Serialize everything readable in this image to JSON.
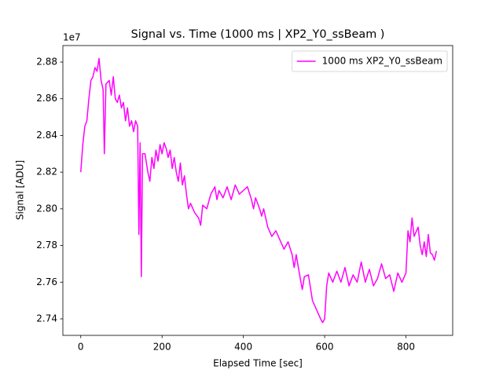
{
  "chart_data": {
    "type": "line",
    "title": "Signal vs. Time (1000 ms | XP2_Y0_ssBeam )",
    "x_label": "Elapsed Time [sec]",
    "y_label": "Signal [ADU]",
    "y_offset_label": "1e7",
    "legend_position": "upper right",
    "xlim": [
      -44,
      915
    ],
    "ylim": [
      27310000,
      28890000
    ],
    "xticks": [
      0,
      200,
      400,
      600,
      800
    ],
    "yticks": [
      {
        "value": 27400000,
        "label": "2.74"
      },
      {
        "value": 27600000,
        "label": "2.76"
      },
      {
        "value": 27800000,
        "label": "2.78"
      },
      {
        "value": 28000000,
        "label": "2.80"
      },
      {
        "value": 28200000,
        "label": "2.82"
      },
      {
        "value": 28400000,
        "label": "2.84"
      },
      {
        "value": 28600000,
        "label": "2.86"
      },
      {
        "value": 28800000,
        "label": "2.88"
      }
    ],
    "series": [
      {
        "name": "1000 ms XP2_Y0_ssBeam",
        "color": "#ff00ff",
        "x": [
          0,
          5,
          10,
          15,
          20,
          25,
          30,
          35,
          40,
          45,
          50,
          55,
          58,
          62,
          70,
          75,
          80,
          85,
          90,
          95,
          100,
          105,
          110,
          115,
          120,
          125,
          130,
          135,
          140,
          143,
          146,
          149,
          152,
          158,
          165,
          170,
          175,
          180,
          185,
          190,
          195,
          200,
          205,
          210,
          215,
          220,
          225,
          230,
          235,
          240,
          245,
          250,
          255,
          260,
          265,
          270,
          280,
          290,
          295,
          300,
          310,
          320,
          330,
          335,
          340,
          350,
          360,
          370,
          380,
          390,
          400,
          410,
          420,
          425,
          430,
          440,
          445,
          450,
          460,
          470,
          480,
          490,
          500,
          510,
          520,
          525,
          530,
          540,
          545,
          550,
          560,
          570,
          580,
          590,
          595,
          600,
          605,
          610,
          620,
          630,
          640,
          650,
          660,
          670,
          680,
          690,
          700,
          710,
          720,
          730,
          740,
          750,
          760,
          770,
          780,
          790,
          800,
          805,
          810,
          815,
          820,
          830,
          835,
          840,
          845,
          850,
          855,
          860,
          865,
          870,
          875
        ],
        "values": [
          28200000,
          28350000,
          28450000,
          28480000,
          28600000,
          28700000,
          28720000,
          28770000,
          28750000,
          28820000,
          28700000,
          28650000,
          28300000,
          28680000,
          28700000,
          28620000,
          28720000,
          28600000,
          28580000,
          28620000,
          28550000,
          28580000,
          28480000,
          28550000,
          28450000,
          28480000,
          28420000,
          28480000,
          28450000,
          27860000,
          28360000,
          27630000,
          28300000,
          28300000,
          28200000,
          28150000,
          28280000,
          28220000,
          28320000,
          28260000,
          28350000,
          28300000,
          28360000,
          28330000,
          28280000,
          28320000,
          28220000,
          28280000,
          28200000,
          28150000,
          28250000,
          28130000,
          28180000,
          28080000,
          28000000,
          28030000,
          27980000,
          27950000,
          27910000,
          28020000,
          28000000,
          28080000,
          28120000,
          28050000,
          28100000,
          28060000,
          28120000,
          28050000,
          28130000,
          28080000,
          28100000,
          28120000,
          28050000,
          28000000,
          28060000,
          28000000,
          27960000,
          28000000,
          27900000,
          27850000,
          27880000,
          27830000,
          27780000,
          27820000,
          27750000,
          27680000,
          27750000,
          27620000,
          27560000,
          27630000,
          27640000,
          27500000,
          27450000,
          27400000,
          27380000,
          27400000,
          27580000,
          27650000,
          27600000,
          27660000,
          27600000,
          27680000,
          27580000,
          27640000,
          27600000,
          27710000,
          27600000,
          27670000,
          27580000,
          27620000,
          27700000,
          27620000,
          27640000,
          27550000,
          27650000,
          27600000,
          27650000,
          27880000,
          27820000,
          27950000,
          27850000,
          27900000,
          27800000,
          27750000,
          27820000,
          27740000,
          27860000,
          27760000,
          27750000,
          27720000,
          27770000
        ]
      }
    ]
  }
}
